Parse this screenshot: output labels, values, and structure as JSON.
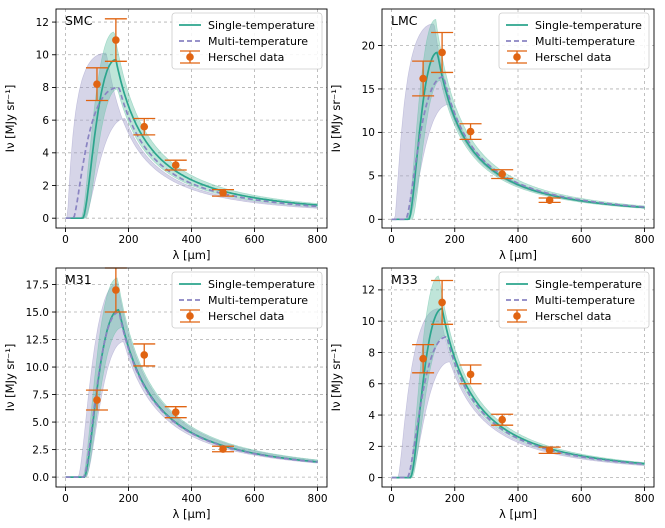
{
  "chart_data": [
    {
      "type": "line",
      "title": "SMC",
      "xlabel": "λ [μm]",
      "ylabel": "Iν [MJy sr⁻¹]",
      "xlim": [
        -30,
        830
      ],
      "ylim": [
        -0.6,
        12.8
      ],
      "xticks": [
        0,
        200,
        400,
        600,
        800
      ],
      "yticks": [
        0,
        2,
        4,
        6,
        8,
        10,
        12
      ],
      "ytick_labels": [
        "0",
        "2",
        "4",
        "6",
        "8",
        "10",
        "12"
      ],
      "grid": true,
      "legend_position": "top-right",
      "legend": [
        "Single-temperature",
        "Multi-temperature",
        "Herschel data"
      ],
      "single": {
        "peak_x": 160,
        "peak_y": 9.7,
        "onset": 55
      },
      "single_band": {
        "upper_peak_x": 155,
        "upper_peak_y": 11.4,
        "upper_onset": 50,
        "lower_peak_x": 165,
        "lower_peak_y": 7.9,
        "lower_onset": 65
      },
      "multi": {
        "peak_x": 170,
        "peak_y": 8.0,
        "onset": 25
      },
      "multi_band": {
        "upper_peak_x": 130,
        "upper_peak_y": 10.1,
        "upper_onset": 5,
        "lower_peak_x": 190,
        "lower_peak_y": 6.1,
        "lower_onset": 60
      },
      "herschel": [
        {
          "x": 100,
          "y": 8.2,
          "err": 1.0
        },
        {
          "x": 160,
          "y": 10.9,
          "err": 1.3
        },
        {
          "x": 250,
          "y": 5.6,
          "err": 0.5
        },
        {
          "x": 350,
          "y": 3.25,
          "err": 0.3
        },
        {
          "x": 500,
          "y": 1.55,
          "err": 0.2
        }
      ]
    },
    {
      "type": "line",
      "title": "LMC",
      "xlabel": "λ [μm]",
      "ylabel": "Iν [MJy sr⁻¹]",
      "xlim": [
        -30,
        830
      ],
      "ylim": [
        -1.0,
        24.2
      ],
      "xticks": [
        0,
        200,
        400,
        600,
        800
      ],
      "yticks": [
        0,
        5,
        10,
        15,
        20
      ],
      "ytick_labels": [
        "0",
        "5",
        "10",
        "15",
        "20"
      ],
      "grid": true,
      "legend_position": "top-right",
      "legend": [
        "Single-temperature",
        "Multi-temperature",
        "Herschel data"
      ],
      "single": {
        "peak_x": 145,
        "peak_y": 19.2,
        "onset": 55
      },
      "single_band": {
        "upper_peak_x": 140,
        "upper_peak_y": 23.0,
        "upper_onset": 50,
        "lower_peak_x": 155,
        "lower_peak_y": 16.0,
        "lower_onset": 65
      },
      "multi": {
        "peak_x": 165,
        "peak_y": 16.4,
        "onset": 45
      },
      "multi_band": {
        "upper_peak_x": 135,
        "upper_peak_y": 22.5,
        "upper_onset": 10,
        "lower_peak_x": 180,
        "lower_peak_y": 13.2,
        "lower_onset": 55
      },
      "herschel": [
        {
          "x": 100,
          "y": 16.2,
          "err": 2.0
        },
        {
          "x": 160,
          "y": 19.2,
          "err": 2.3
        },
        {
          "x": 250,
          "y": 10.1,
          "err": 0.9
        },
        {
          "x": 350,
          "y": 5.2,
          "err": 0.5
        },
        {
          "x": 500,
          "y": 2.2,
          "err": 0.25
        }
      ]
    },
    {
      "type": "line",
      "title": "M31",
      "xlabel": "λ [μm]",
      "ylabel": "Iν [MJy sr⁻¹]",
      "xlim": [
        -30,
        830
      ],
      "ylim": [
        -0.9,
        19.0
      ],
      "xticks": [
        0,
        200,
        400,
        600,
        800
      ],
      "yticks": [
        0,
        2.5,
        5,
        7.5,
        10,
        12.5,
        15,
        17.5
      ],
      "ytick_labels": [
        "0.0",
        "2.5",
        "5.0",
        "7.5",
        "10.0",
        "12.5",
        "15.0",
        "17.5"
      ],
      "grid": true,
      "legend_position": "top-right",
      "legend": [
        "Single-temperature",
        "Multi-temperature",
        "Herschel data"
      ],
      "single": {
        "peak_x": 170,
        "peak_y": 15.2,
        "onset": 60
      },
      "single_band": {
        "upper_peak_x": 165,
        "upper_peak_y": 18.1,
        "upper_onset": 55,
        "lower_peak_x": 180,
        "lower_peak_y": 13.6,
        "lower_onset": 65
      },
      "multi": {
        "peak_x": 170,
        "peak_y": 15.0,
        "onset": 58
      },
      "multi_band": {
        "upper_peak_x": 165,
        "upper_peak_y": 17.6,
        "upper_onset": 40,
        "lower_peak_x": 185,
        "lower_peak_y": 12.3,
        "lower_onset": 65
      },
      "herschel": [
        {
          "x": 100,
          "y": 7.0,
          "err": 0.9
        },
        {
          "x": 160,
          "y": 17.0,
          "err": 2.0
        },
        {
          "x": 250,
          "y": 11.1,
          "err": 1.0
        },
        {
          "x": 350,
          "y": 5.9,
          "err": 0.5
        },
        {
          "x": 500,
          "y": 2.55,
          "err": 0.25
        }
      ]
    },
    {
      "type": "line",
      "title": "M33",
      "xlabel": "λ [μm]",
      "ylabel": "Iν [MJy sr⁻¹]",
      "xlim": [
        -30,
        830
      ],
      "ylim": [
        -0.6,
        13.4
      ],
      "xticks": [
        0,
        200,
        400,
        600,
        800
      ],
      "yticks": [
        0,
        2,
        4,
        6,
        8,
        10,
        12
      ],
      "ytick_labels": [
        "0",
        "2",
        "4",
        "6",
        "8",
        "10",
        "12"
      ],
      "grid": true,
      "legend_position": "top-right",
      "legend": [
        "Single-temperature",
        "Multi-temperature",
        "Herschel data"
      ],
      "single": {
        "peak_x": 160,
        "peak_y": 10.8,
        "onset": 60
      },
      "single_band": {
        "upper_peak_x": 150,
        "upper_peak_y": 12.9,
        "upper_onset": 55,
        "lower_peak_x": 170,
        "lower_peak_y": 9.1,
        "lower_onset": 65
      },
      "multi": {
        "peak_x": 175,
        "peak_y": 9.0,
        "onset": 50
      },
      "multi_band": {
        "upper_peak_x": 150,
        "upper_peak_y": 10.8,
        "upper_onset": 20,
        "lower_peak_x": 185,
        "lower_peak_y": 7.4,
        "lower_onset": 60
      },
      "herschel": [
        {
          "x": 100,
          "y": 7.6,
          "err": 0.9
        },
        {
          "x": 160,
          "y": 11.2,
          "err": 1.4
        },
        {
          "x": 250,
          "y": 6.6,
          "err": 0.6
        },
        {
          "x": 350,
          "y": 3.7,
          "err": 0.35
        },
        {
          "x": 500,
          "y": 1.75,
          "err": 0.2
        }
      ]
    }
  ],
  "colors": {
    "single": "#2ca58d",
    "single_band": "#66c2a5",
    "multi": "#8a84c2",
    "multi_band": "#9e9ac8",
    "herschel": "#e06412",
    "grid": "#b0b0b0"
  }
}
